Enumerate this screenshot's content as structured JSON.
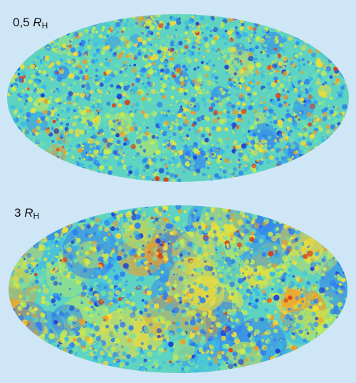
{
  "panels": [
    {
      "id": "top",
      "label_prefix": "0,5 ",
      "label_symbol": "R",
      "label_subscript": "H",
      "seed": 17,
      "blob_scale": "fine"
    },
    {
      "id": "bottom",
      "label_prefix": "3 ",
      "label_symbol": "R",
      "label_subscript": "H",
      "seed": 91,
      "blob_scale": "coarse"
    }
  ],
  "colors": {
    "background": "#cfe6f7",
    "map_base": "#5fd3c2",
    "palette": [
      "#1a3dd6",
      "#2f7ef0",
      "#38b9e8",
      "#73e0a8",
      "#c9ec4e",
      "#f5dc34",
      "#f39a23",
      "#dd3a16"
    ]
  }
}
